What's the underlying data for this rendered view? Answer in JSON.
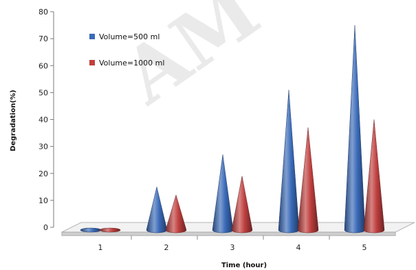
{
  "chart_data": {
    "type": "bar",
    "categories": [
      "1",
      "2",
      "3",
      "4",
      "5"
    ],
    "series": [
      {
        "name": "Volume=500 ml",
        "values": [
          0,
          15,
          27,
          51,
          75
        ],
        "color": "#3a6ab8"
      },
      {
        "name": "Volume=1000 ml",
        "values": [
          0,
          12,
          19,
          37,
          40
        ],
        "color": "#c0403f"
      }
    ],
    "xlabel": "Time (hour)",
    "ylabel": "Degradation(%)",
    "ylim": [
      0,
      80
    ],
    "yticks": [
      0,
      10,
      20,
      30,
      40,
      50,
      60,
      70,
      80
    ],
    "grid": false,
    "legend_position": "top-left",
    "mark_shape": "cone",
    "watermark": "AM"
  }
}
